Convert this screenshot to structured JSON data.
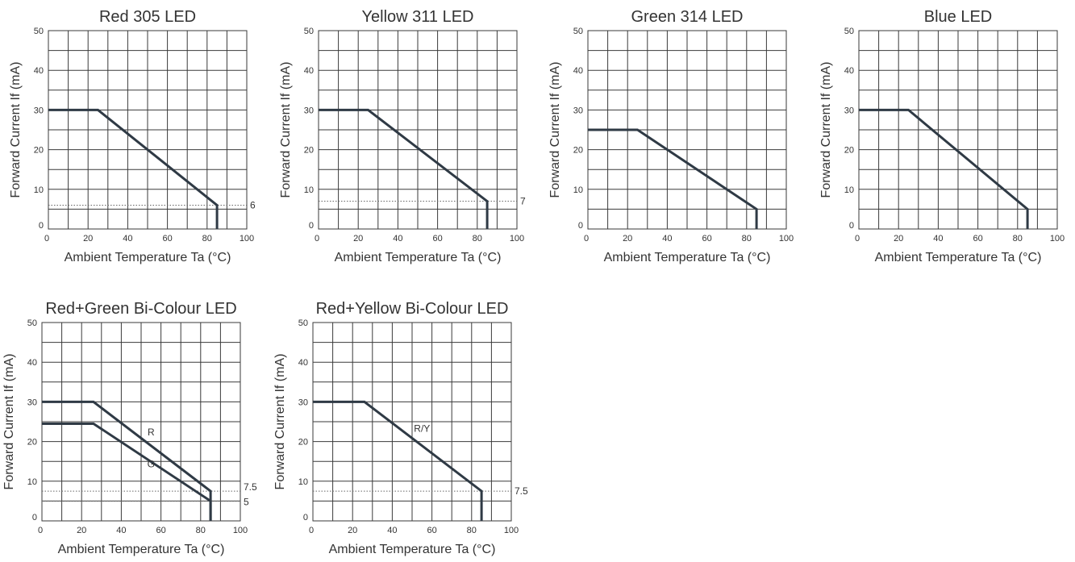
{
  "chart_data": [
    {
      "type": "line",
      "title": "Red 305 LED",
      "xlabel": "Ambient Temperature Ta (°C)",
      "ylabel": "Forward Current If (mA)",
      "xlim": [
        0,
        100
      ],
      "ylim": [
        0,
        50
      ],
      "xticks": [
        "0",
        "20",
        "40",
        "60",
        "80",
        "100"
      ],
      "yticks": [
        "0",
        "10",
        "20",
        "30",
        "40",
        "50"
      ],
      "grid": true,
      "series": [
        {
          "x": [
            0,
            25,
            85,
            85
          ],
          "y": [
            30,
            30,
            6,
            0
          ]
        }
      ],
      "reference_lines": [
        {
          "y": 6,
          "label": "6"
        }
      ],
      "annotations": []
    },
    {
      "type": "line",
      "title": "Yellow 311 LED",
      "xlabel": "Ambient Temperature Ta (°C)",
      "ylabel": "Forward Current If (mA)",
      "xlim": [
        0,
        100
      ],
      "ylim": [
        0,
        50
      ],
      "xticks": [
        "0",
        "20",
        "40",
        "60",
        "80",
        "100"
      ],
      "yticks": [
        "0",
        "10",
        "20",
        "30",
        "40",
        "50"
      ],
      "grid": true,
      "series": [
        {
          "x": [
            0,
            25,
            85,
            85
          ],
          "y": [
            30,
            30,
            7,
            0
          ]
        }
      ],
      "reference_lines": [
        {
          "y": 7,
          "label": "7"
        }
      ],
      "annotations": []
    },
    {
      "type": "line",
      "title": "Green 314 LED",
      "xlabel": "Ambient Temperature Ta (°C)",
      "ylabel": "Forward Current If (mA)",
      "xlim": [
        0,
        100
      ],
      "ylim": [
        0,
        50
      ],
      "xticks": [
        "0",
        "20",
        "40",
        "60",
        "80",
        "100"
      ],
      "yticks": [
        "0",
        "10",
        "20",
        "30",
        "40",
        "50"
      ],
      "grid": true,
      "series": [
        {
          "x": [
            0,
            25,
            85,
            85
          ],
          "y": [
            25,
            25,
            5,
            0
          ]
        }
      ],
      "reference_lines": [],
      "annotations": []
    },
    {
      "type": "line",
      "title": "Blue LED",
      "xlabel": "Ambient Temperature Ta (°C)",
      "ylabel": "Forward Current If (mA)",
      "xlim": [
        0,
        100
      ],
      "ylim": [
        0,
        50
      ],
      "xticks": [
        "0",
        "20",
        "40",
        "60",
        "80",
        "100"
      ],
      "yticks": [
        "0",
        "10",
        "20",
        "30",
        "40",
        "50"
      ],
      "grid": true,
      "series": [
        {
          "x": [
            0,
            25,
            85,
            85
          ],
          "y": [
            30,
            30,
            5,
            0
          ]
        }
      ],
      "reference_lines": [],
      "annotations": []
    },
    {
      "type": "line",
      "title": "Red+Green Bi-Colour LED",
      "xlabel": "Ambient Temperature Ta (°C)",
      "ylabel": "Forward Current If (mA)",
      "xlim": [
        0,
        100
      ],
      "ylim": [
        0,
        50
      ],
      "xticks": [
        "0",
        "20",
        "40",
        "60",
        "80",
        "100"
      ],
      "yticks": [
        "0",
        "10",
        "20",
        "30",
        "40",
        "50"
      ],
      "grid": true,
      "series": [
        {
          "name": "R",
          "x": [
            0,
            26,
            85,
            85
          ],
          "y": [
            30,
            30,
            7.5,
            0
          ]
        },
        {
          "name": "G",
          "x": [
            0,
            26,
            85,
            85
          ],
          "y": [
            24.5,
            24.5,
            5,
            0
          ]
        }
      ],
      "reference_lines": [
        {
          "y": 7.5,
          "label": "7.5"
        },
        {
          "y": 5,
          "label": "5"
        }
      ],
      "annotations": [
        {
          "text": "R",
          "x": 55,
          "y": 21.5
        },
        {
          "text": "G",
          "x": 55,
          "y": 13.5
        }
      ]
    },
    {
      "type": "line",
      "title": "Red+Yellow Bi-Colour LED",
      "xlabel": "Ambient Temperature Ta (°C)",
      "ylabel": "Forward Current If (mA)",
      "xlim": [
        0,
        100
      ],
      "ylim": [
        0,
        50
      ],
      "xticks": [
        "0",
        "20",
        "40",
        "60",
        "80",
        "100"
      ],
      "yticks": [
        "0",
        "10",
        "20",
        "30",
        "40",
        "50"
      ],
      "grid": true,
      "series": [
        {
          "name": "R/Y",
          "x": [
            0,
            26,
            85,
            85
          ],
          "y": [
            30,
            30,
            7.5,
            0
          ]
        }
      ],
      "reference_lines": [
        {
          "y": 7.5,
          "label": "7.5"
        }
      ],
      "annotations": [
        {
          "text": "R/Y",
          "x": 55,
          "y": 22.5
        }
      ]
    }
  ]
}
